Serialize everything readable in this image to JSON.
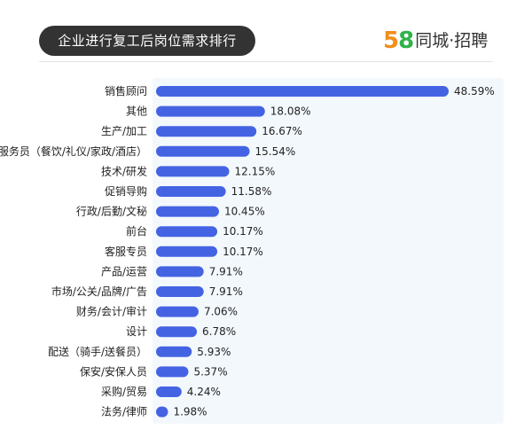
{
  "header": {
    "title": "企业进行复工后岗位需求排行",
    "logo_number_5": "5",
    "logo_number_8": "8",
    "logo_text": "同城·招聘"
  },
  "colors": {
    "bar": "#4463e3",
    "plot_background": "#f3f8fd",
    "title_pill": "#333333",
    "logo_orange": "#f08f1c",
    "logo_green": "#2fb34a"
  },
  "chart_data": {
    "type": "bar",
    "orientation": "horizontal",
    "title": "企业进行复工后岗位需求排行",
    "xlabel": "",
    "ylabel": "",
    "xlim": [
      0,
      50
    ],
    "grid": false,
    "legend": "none",
    "categories": [
      "销售顾问",
      "其他",
      "生产/加工",
      "服务员（餐饮/礼仪/家政/酒店）",
      "技术/研发",
      "促销导购",
      "行政/后勤/文秘",
      "前台",
      "客服专员",
      "产品/运营",
      "市场/公关/品牌/广告",
      "财务/会计/审计",
      "设计",
      "配送（骑手/送餐员）",
      "保安/安保人员",
      "采购/贸易",
      "法务/律师"
    ],
    "values": [
      48.59,
      18.08,
      16.67,
      15.54,
      12.15,
      11.58,
      10.45,
      10.17,
      10.17,
      7.91,
      7.91,
      7.06,
      6.78,
      5.93,
      5.37,
      4.24,
      1.98
    ],
    "value_labels": [
      "48.59%",
      "18.08%",
      "16.67%",
      "15.54%",
      "12.15%",
      "11.58%",
      "10.45%",
      "10.17%",
      "10.17%",
      "7.91%",
      "7.91%",
      "7.06%",
      "6.78%",
      "5.93%",
      "5.37%",
      "4.24%",
      "1.98%"
    ]
  }
}
